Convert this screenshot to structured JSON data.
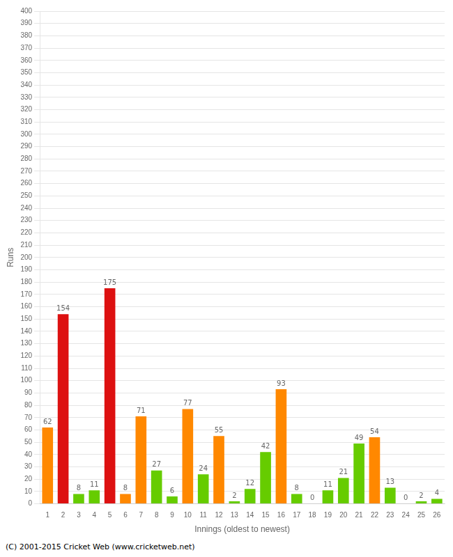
{
  "chart_data": {
    "type": "bar",
    "categories": [
      "1",
      "2",
      "3",
      "4",
      "5",
      "6",
      "7",
      "8",
      "9",
      "10",
      "11",
      "12",
      "13",
      "14",
      "15",
      "16",
      "17",
      "18",
      "19",
      "20",
      "21",
      "22",
      "23",
      "24",
      "25",
      "26"
    ],
    "values": [
      62,
      154,
      8,
      11,
      175,
      8,
      71,
      27,
      6,
      77,
      24,
      55,
      2,
      12,
      42,
      93,
      8,
      0,
      11,
      21,
      49,
      54,
      13,
      0,
      2,
      4
    ],
    "colors": [
      "#ff8800",
      "#dd1111",
      "#66cc00",
      "#66cc00",
      "#dd1111",
      "#ff8800",
      "#ff8800",
      "#66cc00",
      "#66cc00",
      "#ff8800",
      "#66cc00",
      "#ff8800",
      "#66cc00",
      "#66cc00",
      "#66cc00",
      "#ff8800",
      "#66cc00",
      "#66cc00",
      "#66cc00",
      "#66cc00",
      "#66cc00",
      "#ff8800",
      "#66cc00",
      "#66cc00",
      "#66cc00",
      "#66cc00"
    ],
    "x_label": "Innings (oldest to newest)",
    "y_label": "Runs",
    "ylim": [
      0,
      400
    ],
    "yticks": [
      0,
      10,
      20,
      30,
      40,
      50,
      60,
      70,
      80,
      90,
      100,
      110,
      120,
      130,
      140,
      150,
      160,
      170,
      180,
      190,
      200,
      210,
      220,
      230,
      240,
      250,
      260,
      270,
      280,
      290,
      300,
      310,
      320,
      330,
      340,
      350,
      360,
      370,
      380,
      390,
      400
    ],
    "grid": true,
    "data_labels": true,
    "annotations": [
      "(C) 2001-2015 Cricket Web (www.cricketweb.net)"
    ]
  }
}
